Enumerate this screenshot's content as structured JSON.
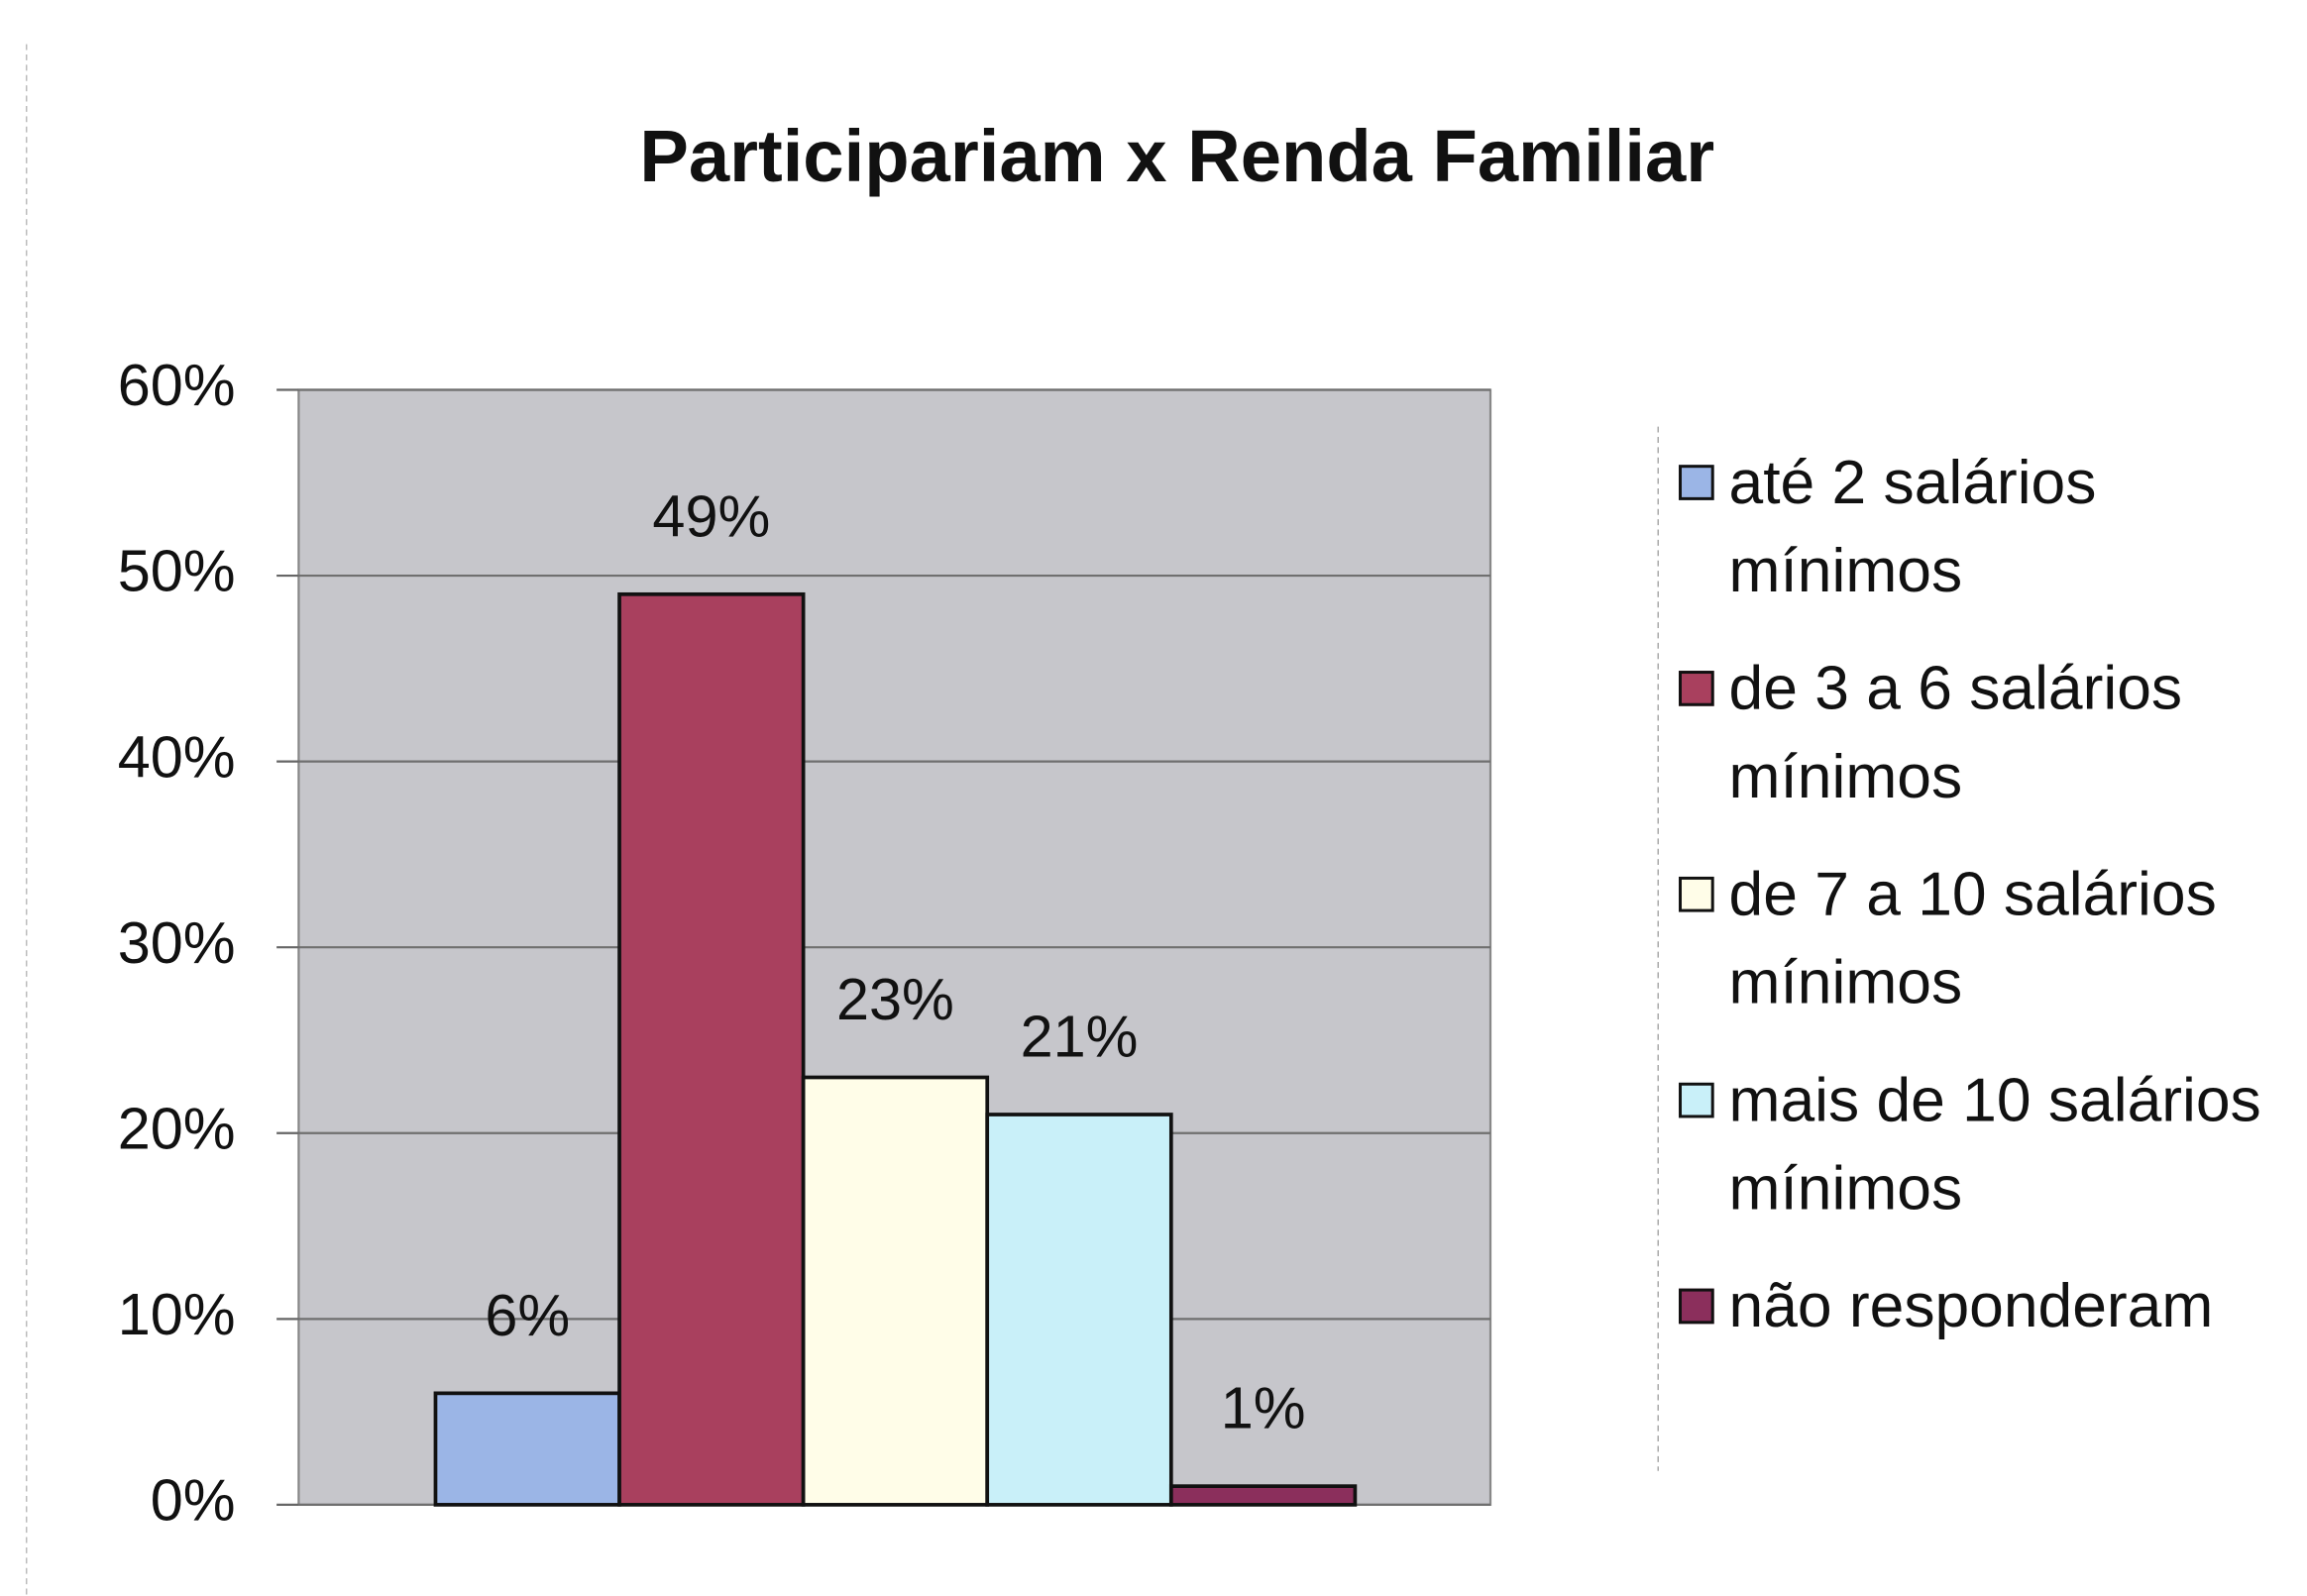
{
  "chart_data": {
    "type": "bar",
    "title": "Participariam x Renda Familiar",
    "series": [
      {
        "name": "até 2 salários mínimos",
        "color": "#9bb5e6",
        "values": [
          6
        ],
        "value_labels": [
          "6%"
        ]
      },
      {
        "name": "de 3 a 6 salários mínimos",
        "color": "#a9405e",
        "values": [
          49
        ],
        "value_labels": [
          "49%"
        ]
      },
      {
        "name": "de 7 a 10 salários mínimos",
        "color": "#fffde8",
        "values": [
          23
        ],
        "value_labels": [
          "23%"
        ]
      },
      {
        "name": "mais de 10 salários mínimos",
        "color": "#c9f0f9",
        "values": [
          21
        ],
        "value_labels": [
          "21%"
        ]
      },
      {
        "name": "não responderam",
        "color": "#8b2f5c",
        "values": [
          1
        ],
        "value_labels": [
          "1%"
        ]
      }
    ],
    "ylim": [
      0,
      60
    ],
    "yticks": [
      {
        "value": 0,
        "label": "0%"
      },
      {
        "value": 10,
        "label": "10%"
      },
      {
        "value": 20,
        "label": "20%"
      },
      {
        "value": 30,
        "label": "30%"
      },
      {
        "value": 40,
        "label": "40%"
      },
      {
        "value": 50,
        "label": "50%"
      },
      {
        "value": 60,
        "label": "60%"
      }
    ],
    "grid": true,
    "legend": "right"
  }
}
